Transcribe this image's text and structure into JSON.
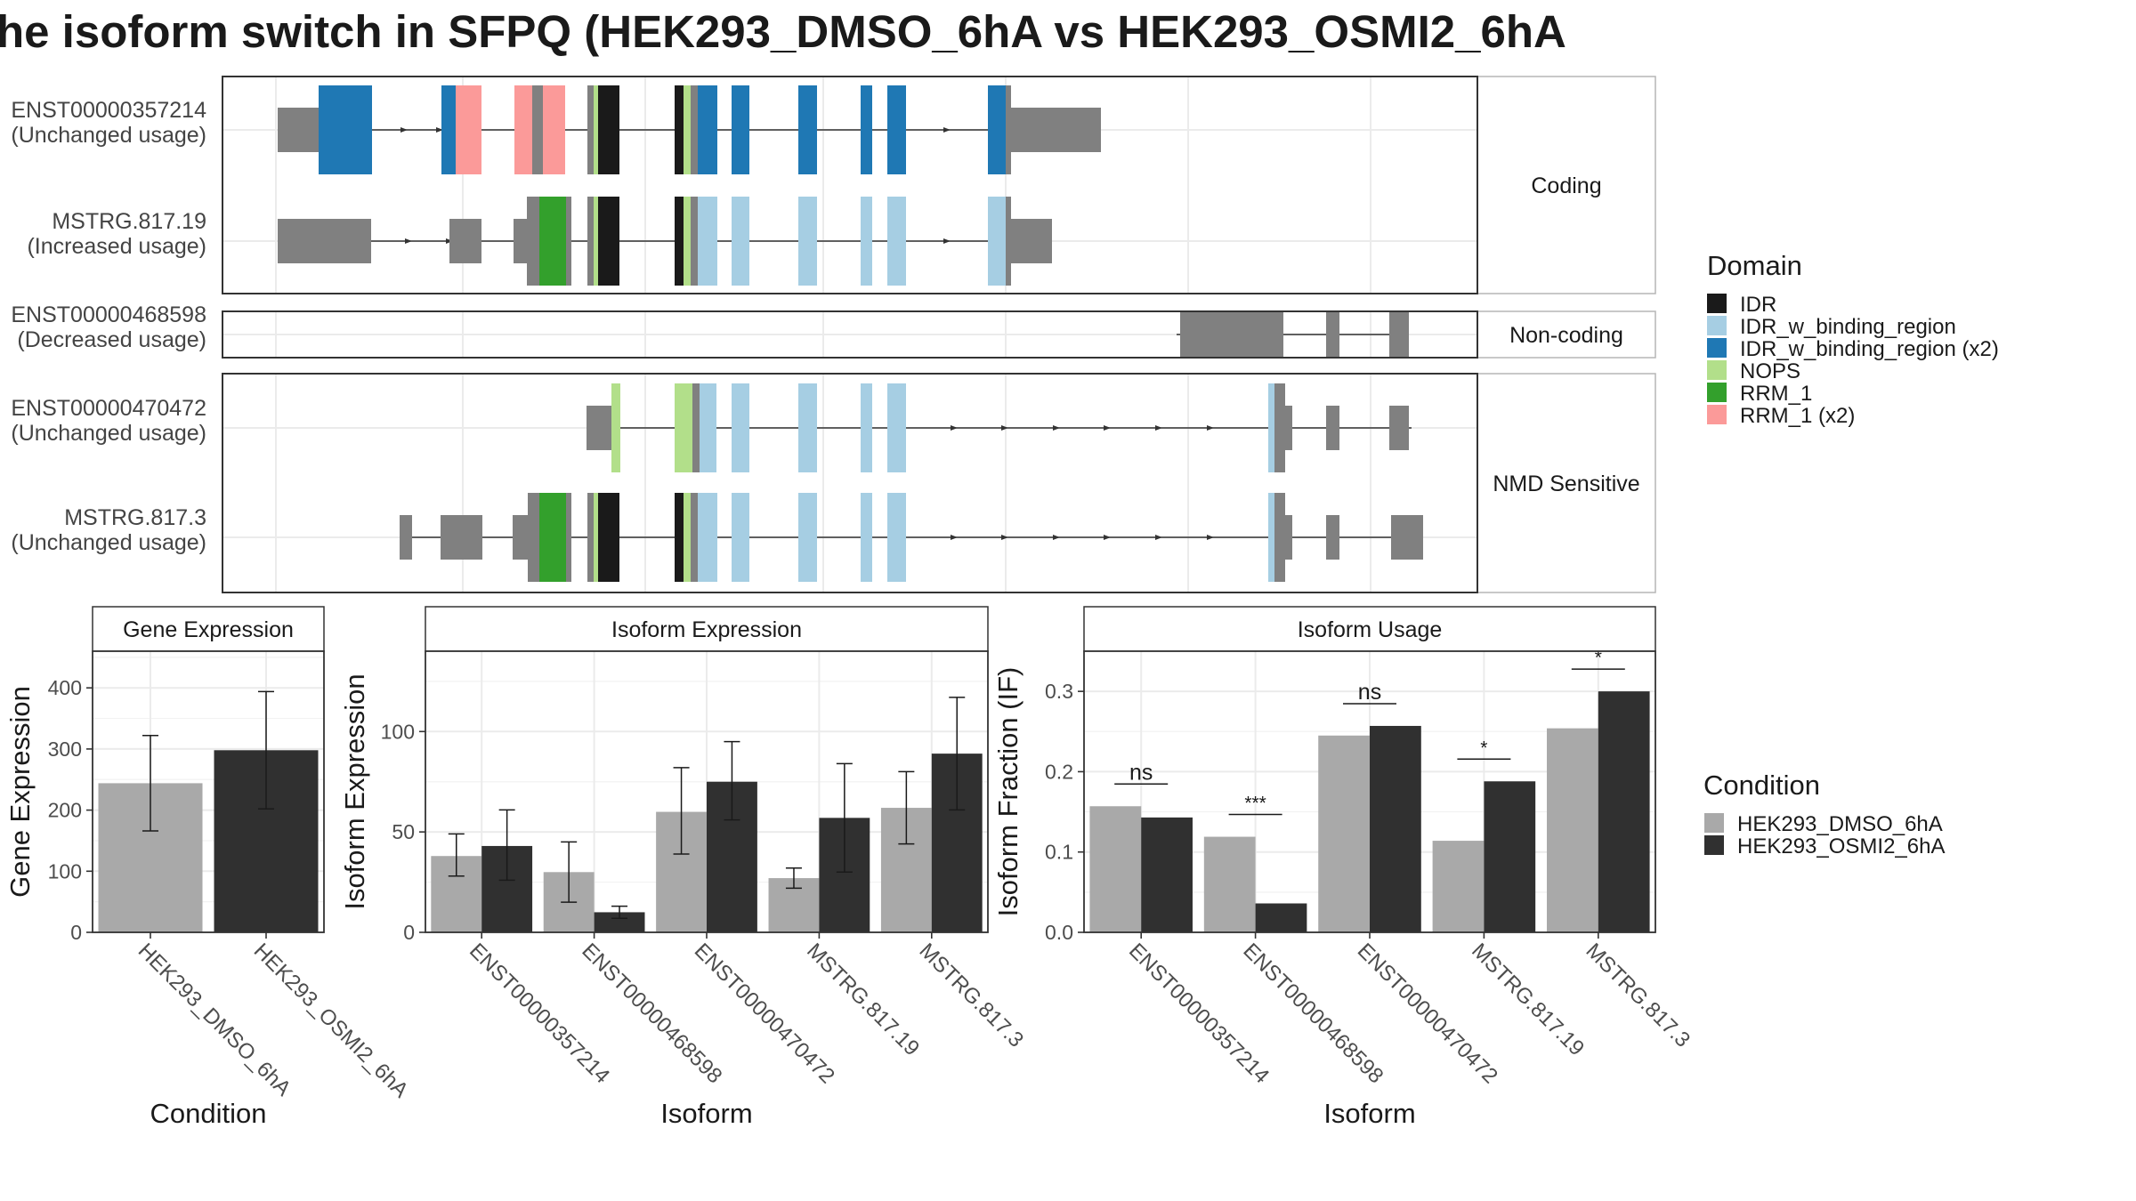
{
  "title": "he isoform switch in SFPQ (HEK293_DMSO_6hA vs HEK293_OSMI2_6hA",
  "colors": {
    "exon": "#808080",
    "IDR": "#1a1a1a",
    "IDR_w_binding_region": "#a6cee3",
    "IDR_w_binding_region (x2)": "#1f78b4",
    "NOPS": "#b2df8a",
    "RRM_1": "#33a02c",
    "RRM_1 (x2)": "#fb9a99",
    "HEK293_DMSO_6hA": "#a9a9a9",
    "HEK293_OSMI2_6hA": "#303030"
  },
  "structure": {
    "facets": [
      {
        "label": "Coding",
        "isoforms": [
          {
            "name": "ENST00000357214",
            "usage": "(Unchanged usage)"
          },
          {
            "name": "MSTRG.817.19",
            "usage": "(Increased usage)"
          }
        ]
      },
      {
        "label": "Non-coding",
        "isoforms": [
          {
            "name": "ENST00000468598",
            "usage": "(Decreased usage)"
          }
        ]
      },
      {
        "label": "NMD Sensitive",
        "isoforms": [
          {
            "name": "ENST00000470472",
            "usage": "(Unchanged usage)"
          },
          {
            "name": "MSTRG.817.3",
            "usage": "(Unchanged usage)"
          }
        ]
      }
    ]
  },
  "domain_legend": {
    "title": "Domain",
    "items": [
      "IDR",
      "IDR_w_binding_region",
      "IDR_w_binding_region (x2)",
      "NOPS",
      "RRM_1",
      "RRM_1 (x2)"
    ]
  },
  "condition_legend": {
    "title": "Condition",
    "items": [
      "HEK293_DMSO_6hA",
      "HEK293_OSMI2_6hA"
    ]
  },
  "chart_data": [
    {
      "type": "bar",
      "title": "Gene Expression",
      "xlabel": "Condition",
      "ylabel": "Gene Expression",
      "ylim": [
        0,
        460
      ],
      "yticks": [
        0,
        100,
        200,
        300,
        400
      ],
      "categories": [
        "HEK293_DMSO_6hA",
        "HEK293_OSMI2_6hA"
      ],
      "values": [
        244,
        298
      ],
      "errors": [
        [
          166,
          322
        ],
        [
          202,
          394
        ]
      ]
    },
    {
      "type": "bar",
      "title": "Isoform Expression",
      "xlabel": "Isoform",
      "ylabel": "Isoform Expression",
      "ylim": [
        0,
        140
      ],
      "yticks": [
        0,
        50,
        100
      ],
      "categories": [
        "ENST00000357214",
        "ENST00000468598",
        "ENST00000470472",
        "MSTRG.817.19",
        "MSTRG.817.3"
      ],
      "series": [
        {
          "name": "HEK293_DMSO_6hA",
          "values": [
            38,
            30,
            60,
            27,
            62
          ],
          "errors": [
            [
              28,
              49
            ],
            [
              15,
              45
            ],
            [
              39,
              82
            ],
            [
              22,
              32
            ],
            [
              44,
              80
            ]
          ]
        },
        {
          "name": "HEK293_OSMI2_6hA",
          "values": [
            43,
            10,
            75,
            57,
            89
          ],
          "errors": [
            [
              26,
              61
            ],
            [
              7,
              13
            ],
            [
              56,
              95
            ],
            [
              30,
              84
            ],
            [
              61,
              117
            ]
          ]
        }
      ]
    },
    {
      "type": "bar",
      "title": "Isoform Usage",
      "xlabel": "Isoform",
      "ylabel": "Isoform Fraction (IF)",
      "ylim": [
        0,
        0.35
      ],
      "yticks": [
        "0.0",
        "0.1",
        "0.2",
        "0.3"
      ],
      "categories": [
        "ENST00000357214",
        "ENST00000468598",
        "ENST00000470472",
        "MSTRG.817.19",
        "MSTRG.817.3"
      ],
      "series": [
        {
          "name": "HEK293_DMSO_6hA",
          "values": [
            0.157,
            0.119,
            0.245,
            0.114,
            0.254
          ]
        },
        {
          "name": "HEK293_OSMI2_6hA",
          "values": [
            0.143,
            0.036,
            0.257,
            0.188,
            0.3
          ]
        }
      ],
      "significance": [
        "ns",
        "***",
        "ns",
        "*",
        "*"
      ]
    }
  ]
}
